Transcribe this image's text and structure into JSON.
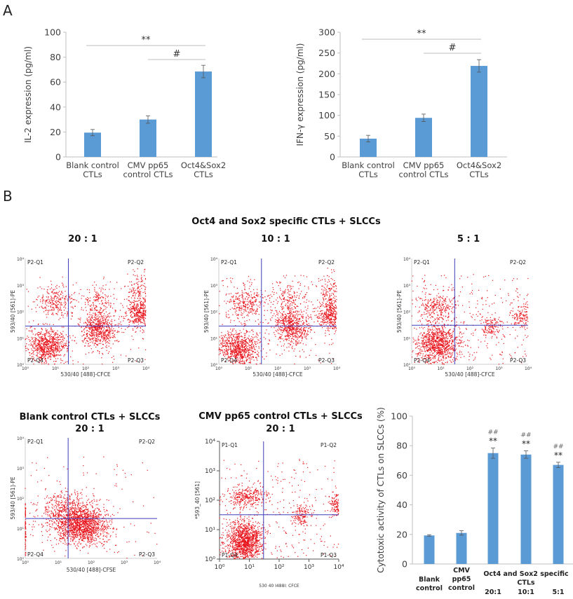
{
  "panels": {
    "a_label": "A",
    "b_label": "B"
  },
  "section_b_title": "Oct4 and Sox2 specific CTLs + SLCCs",
  "colors": {
    "bar": "#5B9BD5",
    "bar_edge": "#4a86c0",
    "axis": "#bfbfbf",
    "error": "#555555",
    "dots": "#e8121a",
    "quadrant_line": "#3d3dbb"
  },
  "chart_data": [
    {
      "type": "bar",
      "ylabel": "IL-2 expression (pg/ml)",
      "ylim": [
        0,
        100
      ],
      "yticks": [
        "0",
        "20",
        "40",
        "60",
        "80",
        "100"
      ],
      "categories": [
        [
          "Blank control",
          "CTLs"
        ],
        [
          "CMV pp65",
          "control CTLs"
        ],
        [
          "Oct4&Sox2",
          "CTLs"
        ]
      ],
      "values": [
        19.5,
        30,
        68.5
      ],
      "errors": [
        2.5,
        3,
        5
      ],
      "significance": [
        {
          "label": "**",
          "from": 0,
          "to": 2
        },
        {
          "label": "#",
          "from": 1,
          "to": 2
        }
      ]
    },
    {
      "type": "bar",
      "ylabel": "IFN-γ expression (pg/ml)",
      "ylim": [
        0,
        300
      ],
      "yticks": [
        "0",
        "50",
        "100",
        "150",
        "200",
        "250",
        "300"
      ],
      "categories": [
        [
          "Blank control",
          "CTLs"
        ],
        [
          "CMV pp65",
          "control CTLs"
        ],
        [
          "Oct4&Sox2",
          "CTLs"
        ]
      ],
      "values": [
        44,
        94,
        219
      ],
      "errors": [
        8,
        9,
        15
      ],
      "significance": [
        {
          "label": "**",
          "from": 0,
          "to": 2
        },
        {
          "label": "#",
          "from": 1,
          "to": 2
        }
      ]
    },
    {
      "type": "scatter",
      "title": "",
      "ratio": "20 : 1",
      "xlabel": "530/40 [488]-CFCE",
      "ylabel": "593/40 [561]-PE",
      "xlim": [
        1,
        10000
      ],
      "ylim": [
        1,
        10000
      ],
      "log": true,
      "ticks": [
        "10⁰",
        "10¹",
        "10²",
        "10³",
        "10⁴"
      ],
      "quadrants": [
        "P2-Q1",
        "P2-Q2",
        "P2-Q3",
        "P2-Q4"
      ],
      "gates": [
        27,
        28
      ],
      "clusters": [
        {
          "center": [
            5.6,
            5
          ],
          "spread": [
            0.33,
            0.33
          ],
          "n": 750
        },
        {
          "center": [
            10,
            250
          ],
          "spread": [
            0.32,
            0.28
          ],
          "n": 260
        },
        {
          "center": [
            280,
            20
          ],
          "spread": [
            0.28,
            0.33
          ],
          "n": 620
        },
        {
          "center": [
            250,
            200
          ],
          "spread": [
            0.3,
            0.35
          ],
          "n": 160
        },
        {
          "center": [
            6300,
            80
          ],
          "spread": [
            0.22,
            0.3
          ],
          "n": 420
        },
        {
          "center": [
            6300,
            630
          ],
          "spread": [
            0.2,
            0.35
          ],
          "n": 150
        }
      ],
      "background_events": 160
    },
    {
      "type": "scatter",
      "title": "",
      "ratio": "10 : 1",
      "xlabel": "530/40 [488]-CFCE",
      "ylabel": "593/40 [561]-PE",
      "xlim": [
        1,
        10000
      ],
      "ylim": [
        1,
        10000
      ],
      "log": true,
      "ticks": [
        "10⁰",
        "10¹",
        "10²",
        "10³",
        "10⁴"
      ],
      "quadrants": [
        "P2-Q1",
        "P2-Q2",
        "P2-Q3",
        "P2-Q4"
      ],
      "gates": [
        28,
        28
      ],
      "clusters": [
        {
          "center": [
            5,
            4
          ],
          "spread": [
            0.33,
            0.35
          ],
          "n": 800
        },
        {
          "center": [
            8,
            200
          ],
          "spread": [
            0.32,
            0.3
          ],
          "n": 280
        },
        {
          "center": [
            300,
            25
          ],
          "spread": [
            0.28,
            0.33
          ],
          "n": 600
        },
        {
          "center": [
            250,
            250
          ],
          "spread": [
            0.3,
            0.35
          ],
          "n": 170
        },
        {
          "center": [
            6300,
            70
          ],
          "spread": [
            0.22,
            0.3
          ],
          "n": 400
        },
        {
          "center": [
            6300,
            500
          ],
          "spread": [
            0.2,
            0.35
          ],
          "n": 160
        }
      ],
      "background_events": 180
    },
    {
      "type": "scatter",
      "title": "",
      "ratio": "5 : 1",
      "xlabel": "530/40 [488]-CFCE",
      "ylabel": "593/40 [561]-PE",
      "xlim": [
        1,
        10000
      ],
      "ylim": [
        1,
        10000
      ],
      "log": true,
      "ticks": [
        "10⁰",
        "10¹",
        "10²",
        "10³",
        "10⁴"
      ],
      "quadrants": [
        "P2-Q1",
        "P2-Q2",
        "P2-Q3",
        "P2-Q4"
      ],
      "gates": [
        30,
        30
      ],
      "clusters": [
        {
          "center": [
            8,
            6
          ],
          "spread": [
            0.35,
            0.4
          ],
          "n": 950
        },
        {
          "center": [
            8,
            160
          ],
          "spread": [
            0.35,
            0.25
          ],
          "n": 260
        },
        {
          "center": [
            500,
            25
          ],
          "spread": [
            0.2,
            0.2
          ],
          "n": 130
        },
        {
          "center": [
            6300,
            63
          ],
          "spread": [
            0.2,
            0.25
          ],
          "n": 130
        }
      ],
      "background_events": 320
    },
    {
      "type": "scatter",
      "title": "Blank control CTLs + SLCCs",
      "ratio": "20 : 1",
      "xlabel": "530/40 [488]-CFSE",
      "ylabel": "593/40 [561]-PE",
      "xlim": [
        1,
        10000
      ],
      "ylim": [
        1,
        10000
      ],
      "log": true,
      "ticks": [
        "10⁰",
        "10¹",
        "10²",
        "10³",
        "10⁴"
      ],
      "quadrants": [
        "P2-Q1",
        "P2-Q2",
        "P2-Q3",
        "P2-Q4"
      ],
      "gates": [
        20,
        21
      ],
      "clusters": [
        {
          "center": [
            50,
            13
          ],
          "spread": [
            0.4,
            0.33
          ],
          "n": 1500
        },
        {
          "center": [
            16,
            40
          ],
          "spread": [
            0.4,
            0.3
          ],
          "n": 420
        },
        {
          "center": [
            1,
            10
          ],
          "spread": [
            0.01,
            0.6
          ],
          "n": 150
        }
      ],
      "background_events": 100
    },
    {
      "type": "scatter",
      "title": "CMV pp65 control CTLs + SLCCs",
      "ratio": "20 : 1",
      "xlabel": "530  40 I488I: CFCE",
      "ylabel": "*593_40 [561]",
      "xlim": [
        1,
        10000
      ],
      "ylim": [
        1,
        10000
      ],
      "log": true,
      "ticks": [
        "10⁰",
        "10¹",
        "10²",
        "10³",
        "10⁴"
      ],
      "quadrants": [
        "P1-Q1",
        "P1-Q2",
        "P1-Q3",
        "P1-Q4"
      ],
      "gates": [
        30,
        32
      ],
      "clusters": [
        {
          "center": [
            7,
            4
          ],
          "spread": [
            0.3,
            0.35
          ],
          "n": 1250
        },
        {
          "center": [
            8,
            126
          ],
          "spread": [
            0.35,
            0.2
          ],
          "n": 320
        },
        {
          "center": [
            560,
            32
          ],
          "spread": [
            0.2,
            0.2
          ],
          "n": 150
        },
        {
          "center": [
            8000,
            70
          ],
          "spread": [
            0.12,
            0.2
          ],
          "n": 120
        }
      ],
      "background_events": 260
    },
    {
      "type": "bar",
      "ylabel": "Cytotoxic activity of CTLs on SLCCs (%)",
      "ylim": [
        0,
        100
      ],
      "yticks": [
        "0",
        "20",
        "40",
        "60",
        "80",
        "100"
      ],
      "categories": [
        [
          "Blank",
          "control"
        ],
        [
          "CMV",
          "pp65",
          "control"
        ],
        [
          "20:1"
        ],
        [
          "10:1"
        ],
        [
          "5:1"
        ]
      ],
      "group_label": [
        "Oct4 and Sox2 specific",
        "CTLs"
      ],
      "values": [
        19.3,
        21,
        75,
        74,
        67
      ],
      "errors": [
        0.5,
        1.5,
        3.5,
        2.5,
        1.8
      ],
      "annotations": [
        null,
        null,
        {
          "hash": "##",
          "stars": "**"
        },
        {
          "hash": "##",
          "stars": "**"
        },
        {
          "hash": "##",
          "stars": "**"
        }
      ]
    }
  ]
}
